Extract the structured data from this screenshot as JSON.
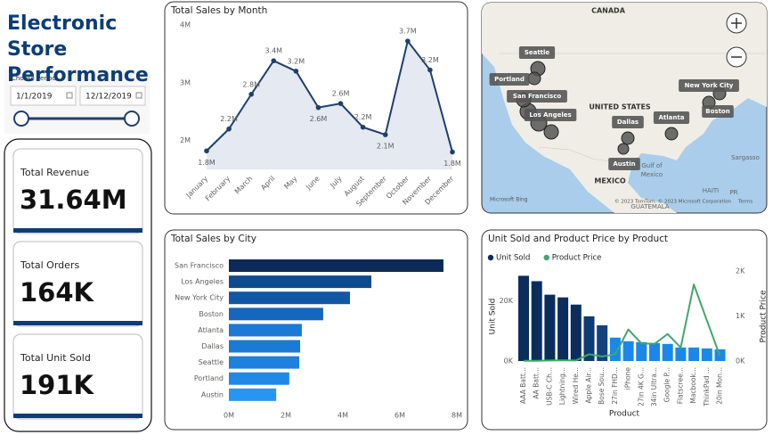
{
  "header": {
    "title": "Electronic Store Performance"
  },
  "filter": {
    "label": "Choose Period",
    "start": "1/1/2019",
    "end": "12/12/2019"
  },
  "kpis": [
    {
      "label": "Total Revenue",
      "value": "31.64M"
    },
    {
      "label": "Total Orders",
      "value": "164K"
    },
    {
      "label": "Total Unit Sold",
      "value": "191K"
    }
  ],
  "map": {
    "places": [
      "CANADA",
      "UNITED STATES",
      "MEXICO",
      "Gulf of",
      "Mexico",
      "Sargasso",
      "HAITI",
      "PR",
      "GUATEMALA"
    ],
    "cities": [
      "Seattle",
      "Portland",
      "San Francisco",
      "Los Angeles",
      "Dallas",
      "Austin",
      "Atlanta",
      "New York City",
      "Boston"
    ],
    "brand": "Microsoft Bing",
    "attribution": "© 2023 TomTom, © 2023 Microsoft Corporation",
    "terms": "Terms"
  },
  "chart_data": [
    {
      "type": "line",
      "title": "Total Sales by Month",
      "categories": [
        "January",
        "February",
        "March",
        "April",
        "May",
        "June",
        "July",
        "August",
        "September",
        "October",
        "November",
        "December"
      ],
      "values": [
        1820000,
        2200000,
        2800000,
        3380000,
        3200000,
        2570000,
        2640000,
        2230000,
        2100000,
        3720000,
        3220000,
        1800000
      ],
      "value_labels": [
        "1.8M",
        "2.2M",
        "2.8M",
        "3.4M",
        "3.2M",
        "2.6M",
        "2.6M",
        "2.2M",
        "2.1M",
        "3.7M",
        "3.2M",
        "1.8M"
      ],
      "color": "#1f3f6e",
      "area_color": "#e4e9f2",
      "ylim": [
        1500000,
        4000000
      ],
      "yticks": [
        {
          "value": 2000000,
          "label": "2M"
        },
        {
          "value": 3000000,
          "label": "3M"
        },
        {
          "value": 4000000,
          "label": "4M"
        }
      ],
      "grid": false
    },
    {
      "type": "hbar",
      "title": "Total Sales by City",
      "categories": [
        "San Francisco",
        "Los Angeles",
        "New York City",
        "Boston",
        "Atlanta",
        "Dallas",
        "Seattle",
        "Portland",
        "Austin"
      ],
      "values": [
        7530000,
        5000000,
        4250000,
        3310000,
        2560000,
        2500000,
        2470000,
        2120000,
        1660000
      ],
      "colors": [
        "#0b2a57",
        "#0e4a8f",
        "#1257a6",
        "#1567bd",
        "#1a7ad6",
        "#1a7ad6",
        "#1c80de",
        "#1f89e8",
        "#2796f2"
      ],
      "xlim": [
        0,
        8000000
      ],
      "xticks": [
        {
          "value": 0,
          "label": "0M"
        },
        {
          "value": 2000000,
          "label": "2M"
        },
        {
          "value": 4000000,
          "label": "4M"
        },
        {
          "value": 6000000,
          "label": "6M"
        },
        {
          "value": 8000000,
          "label": "8M"
        }
      ]
    },
    {
      "type": "combo",
      "title": "Unit Sold and Product Price by Product",
      "categories": [
        "AAA Batt...",
        "AA Batt...",
        "USB-C Ch...",
        "Lightning...",
        "Wired He...",
        "Apple Air...",
        "Bose Sou...",
        "27in FHD...",
        "iPhone",
        "27in 4K G...",
        "34in Ultra...",
        "Google P...",
        "Flatscree...",
        "Macbook...",
        "ThinkPad ...",
        "20in Mon..."
      ],
      "series": [
        {
          "name": "Unit Sold",
          "color": "#0b2d5c",
          "values": [
            28400,
            26600,
            22100,
            21200,
            18800,
            14900,
            11900,
            7800,
            6600,
            6300,
            6000,
            5700,
            4500,
            4500,
            4200,
            3900
          ],
          "colors": [
            "#0b2d5c",
            "#0b2d5c",
            "#0b2d5c",
            "#0b2d5c",
            "#0b2d5c",
            "#0e3a70",
            "#12427d",
            "#1a88e8",
            "#1a88e8",
            "#1a88e8",
            "#1a88e8",
            "#1a88e8",
            "#1a88e8",
            "#1a88e8",
            "#1a88e8",
            "#1a88e8"
          ]
        },
        {
          "name": "Product Price",
          "color": "#3fa86a",
          "axis": "y2",
          "values": [
            4,
            4,
            12,
            15,
            12,
            150,
            100,
            150,
            700,
            390,
            380,
            600,
            300,
            1700,
            900,
            110
          ]
        }
      ],
      "x_label": "Product",
      "y_label": "Unit Sold",
      "y2_label": "Product Price",
      "ylim": [
        0,
        30000
      ],
      "yticks": [
        {
          "value": 0,
          "label": "0K"
        },
        {
          "value": 20000,
          "label": "20K"
        }
      ],
      "y2lim": [
        0,
        2000
      ],
      "y2ticks": [
        {
          "value": 0,
          "label": "0K"
        },
        {
          "value": 1000,
          "label": "1K"
        },
        {
          "value": 2000,
          "label": "2K"
        }
      ]
    }
  ]
}
